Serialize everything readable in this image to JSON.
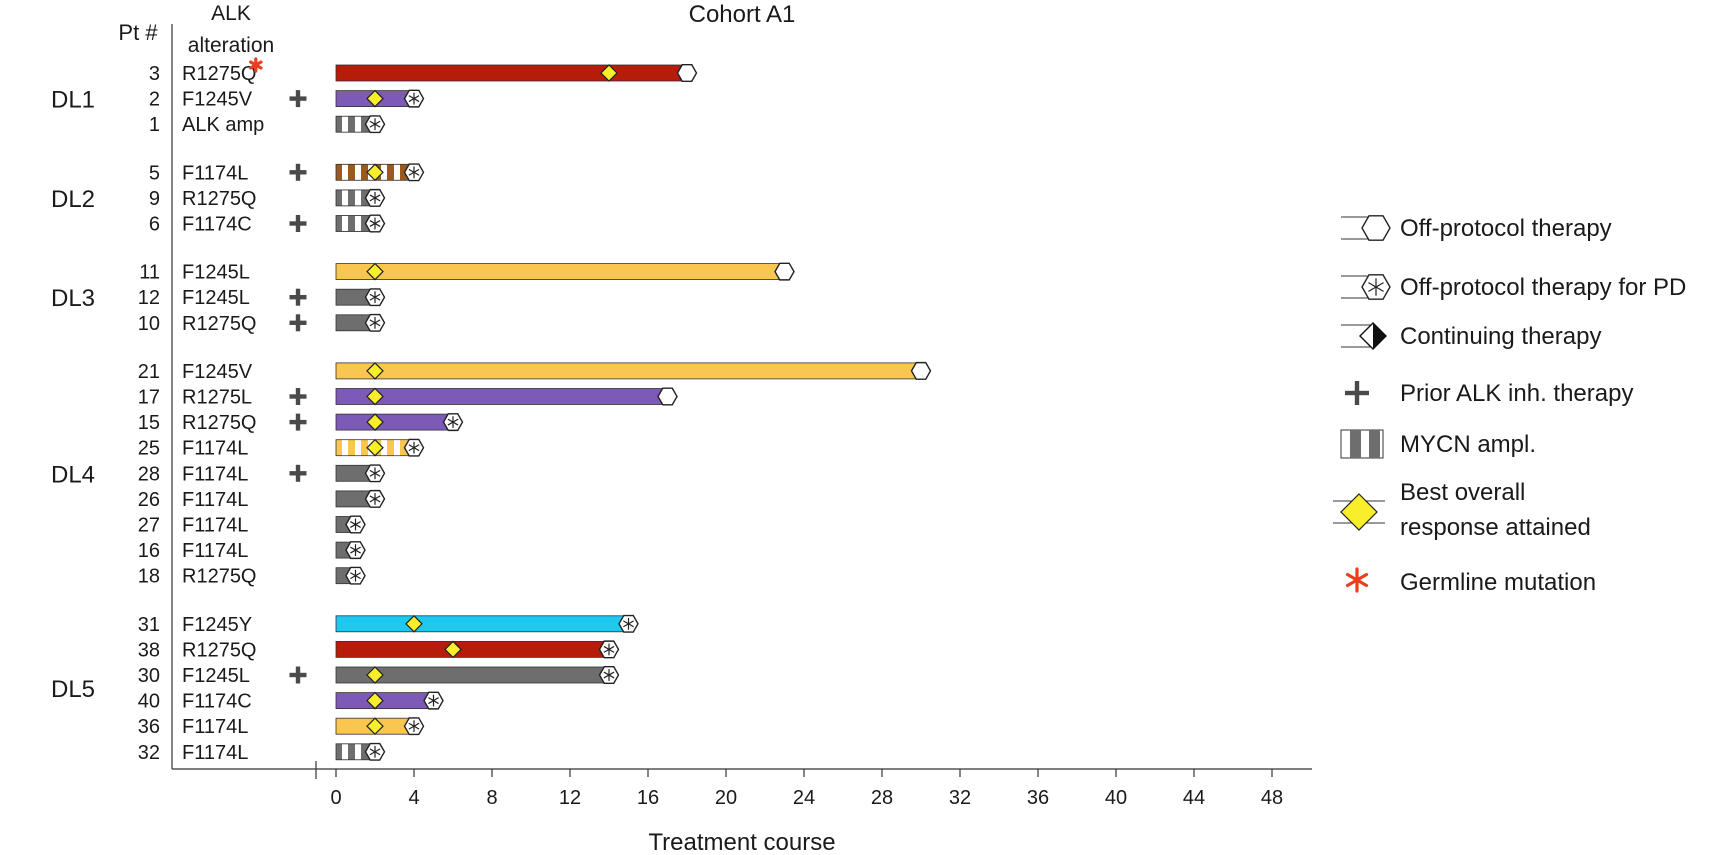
{
  "chart_data": {
    "type": "bar",
    "orientation": "horizontal",
    "title": "Cohort A1",
    "xlabel": "Treatment course",
    "xlim": [
      0,
      48
    ],
    "xticks": [
      0,
      4,
      8,
      12,
      16,
      20,
      24,
      28,
      32,
      36,
      40,
      44,
      48
    ],
    "headers": {
      "patient": "Pt #",
      "alk_line1": "ALK",
      "alk_line2": "alteration"
    },
    "colors": {
      "red": "#b51c0a",
      "purple": "#7c5ab6",
      "gray": "#6e6e6e",
      "brown": "#9a5a1e",
      "yellow": "#f9c74f",
      "cyan": "#1ec9f0",
      "diamond": "#f8ee2a",
      "germline": "#e8401c",
      "plus": "#4a4a4a"
    },
    "groups": [
      {
        "label": "DL1",
        "rows": [
          {
            "pt": "3",
            "alk": "R1275Q",
            "germline": true,
            "prior": false,
            "color": "red",
            "mycn": false,
            "end": 18,
            "endMarker": "off-protocol",
            "best": 14
          },
          {
            "pt": "2",
            "alk": "F1245V",
            "germline": false,
            "prior": true,
            "color": "purple",
            "mycn": false,
            "end": 4,
            "endMarker": "off-protocol-pd",
            "best": 2
          },
          {
            "pt": "1",
            "alk": "ALK amp",
            "germline": false,
            "prior": false,
            "color": "gray",
            "mycn": true,
            "end": 2,
            "endMarker": "off-protocol-pd",
            "best": null
          }
        ]
      },
      {
        "label": "DL2",
        "rows": [
          {
            "pt": "5",
            "alk": "F1174L",
            "germline": false,
            "prior": true,
            "color": "brown",
            "mycn": true,
            "end": 4,
            "endMarker": "off-protocol-pd",
            "best": 2
          },
          {
            "pt": "9",
            "alk": "R1275Q",
            "germline": false,
            "prior": false,
            "color": "gray",
            "mycn": true,
            "end": 2,
            "endMarker": "off-protocol-pd",
            "best": null
          },
          {
            "pt": "6",
            "alk": "F1174C",
            "germline": false,
            "prior": true,
            "color": "gray",
            "mycn": true,
            "end": 2,
            "endMarker": "off-protocol-pd",
            "best": null
          }
        ]
      },
      {
        "label": "DL3",
        "rows": [
          {
            "pt": "11",
            "alk": "F1245L",
            "germline": false,
            "prior": false,
            "color": "yellow",
            "mycn": false,
            "end": 23,
            "endMarker": "off-protocol",
            "best": 2
          },
          {
            "pt": "12",
            "alk": "F1245L",
            "germline": false,
            "prior": true,
            "color": "gray",
            "mycn": false,
            "end": 2,
            "endMarker": "off-protocol-pd",
            "best": null
          },
          {
            "pt": "10",
            "alk": "R1275Q",
            "germline": false,
            "prior": true,
            "color": "gray",
            "mycn": false,
            "end": 2,
            "endMarker": "off-protocol-pd",
            "best": null
          }
        ]
      },
      {
        "label": "DL4",
        "rows": [
          {
            "pt": "21",
            "alk": "F1245V",
            "germline": false,
            "prior": false,
            "color": "yellow",
            "mycn": false,
            "end": 30,
            "endMarker": "off-protocol",
            "best": 2
          },
          {
            "pt": "17",
            "alk": "R1275L",
            "germline": false,
            "prior": true,
            "color": "purple",
            "mycn": false,
            "end": 17,
            "endMarker": "off-protocol",
            "best": 2
          },
          {
            "pt": "15",
            "alk": "R1275Q",
            "germline": false,
            "prior": true,
            "color": "purple",
            "mycn": false,
            "end": 6,
            "endMarker": "off-protocol-pd",
            "best": 2
          },
          {
            "pt": "25",
            "alk": "F1174L",
            "germline": false,
            "prior": false,
            "color": "yellow",
            "mycn": true,
            "end": 4,
            "endMarker": "off-protocol-pd",
            "best": 2
          },
          {
            "pt": "28",
            "alk": "F1174L",
            "germline": false,
            "prior": true,
            "color": "gray",
            "mycn": false,
            "end": 2,
            "endMarker": "off-protocol-pd",
            "best": null
          },
          {
            "pt": "26",
            "alk": "F1174L",
            "germline": false,
            "prior": false,
            "color": "gray",
            "mycn": false,
            "end": 2,
            "endMarker": "off-protocol-pd",
            "best": null
          },
          {
            "pt": "27",
            "alk": "F1174L",
            "germline": false,
            "prior": false,
            "color": "gray",
            "mycn": false,
            "end": 1,
            "endMarker": "off-protocol-pd",
            "best": null
          },
          {
            "pt": "16",
            "alk": "F1174L",
            "germline": false,
            "prior": false,
            "color": "gray",
            "mycn": false,
            "end": 1,
            "endMarker": "off-protocol-pd",
            "best": null
          },
          {
            "pt": "18",
            "alk": "R1275Q",
            "germline": false,
            "prior": false,
            "color": "gray",
            "mycn": false,
            "end": 1,
            "endMarker": "off-protocol-pd",
            "best": null
          }
        ]
      },
      {
        "label": "DL5",
        "rows": [
          {
            "pt": "31",
            "alk": "F1245Y",
            "germline": false,
            "prior": false,
            "color": "cyan",
            "mycn": false,
            "end": 15,
            "endMarker": "off-protocol-pd",
            "best": 4
          },
          {
            "pt": "38",
            "alk": "R1275Q",
            "germline": false,
            "prior": false,
            "color": "red",
            "mycn": false,
            "end": 14,
            "endMarker": "off-protocol-pd",
            "best": 6
          },
          {
            "pt": "30",
            "alk": "F1245L",
            "germline": false,
            "prior": true,
            "color": "gray",
            "mycn": false,
            "end": 14,
            "endMarker": "off-protocol-pd",
            "best": 2
          },
          {
            "pt": "40",
            "alk": "F1174C",
            "germline": false,
            "prior": false,
            "color": "purple",
            "mycn": false,
            "end": 5,
            "endMarker": "off-protocol-pd",
            "best": 2
          },
          {
            "pt": "36",
            "alk": "F1174L",
            "germline": false,
            "prior": false,
            "color": "yellow",
            "mycn": false,
            "end": 4,
            "endMarker": "off-protocol-pd",
            "best": 2
          },
          {
            "pt": "32",
            "alk": "F1174L",
            "germline": false,
            "prior": false,
            "color": "gray",
            "mycn": true,
            "end": 2,
            "endMarker": "off-protocol-pd",
            "best": null
          }
        ]
      }
    ],
    "legend": {
      "placement": "right",
      "items": [
        {
          "symbol": "off-protocol",
          "label": "Off-protocol therapy"
        },
        {
          "symbol": "off-protocol-pd",
          "label": "Off-protocol therapy for PD"
        },
        {
          "symbol": "continuing",
          "label": "Continuing therapy"
        },
        {
          "symbol": "prior",
          "label": "Prior ALK inh. therapy"
        },
        {
          "symbol": "mycn",
          "label": "MYCN ampl."
        },
        {
          "symbol": "best",
          "label": "Best overall",
          "label2": "response attained"
        },
        {
          "symbol": "germline",
          "label": "Germline mutation"
        }
      ]
    }
  }
}
